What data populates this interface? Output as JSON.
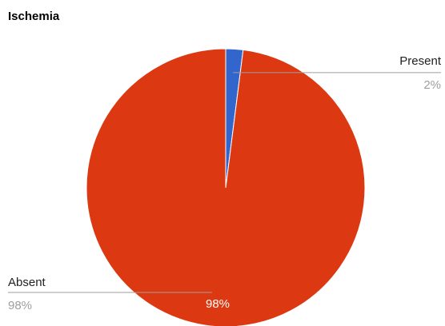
{
  "chart_data": {
    "type": "pie",
    "title": "Ischemia",
    "slices": [
      {
        "name": "Present",
        "value": 2,
        "label": "2%",
        "color": "#3366cc"
      },
      {
        "name": "Absent",
        "value": 98,
        "label": "98%",
        "color": "#dc3912"
      }
    ],
    "legend": "labeled",
    "slice_text": "98%"
  }
}
